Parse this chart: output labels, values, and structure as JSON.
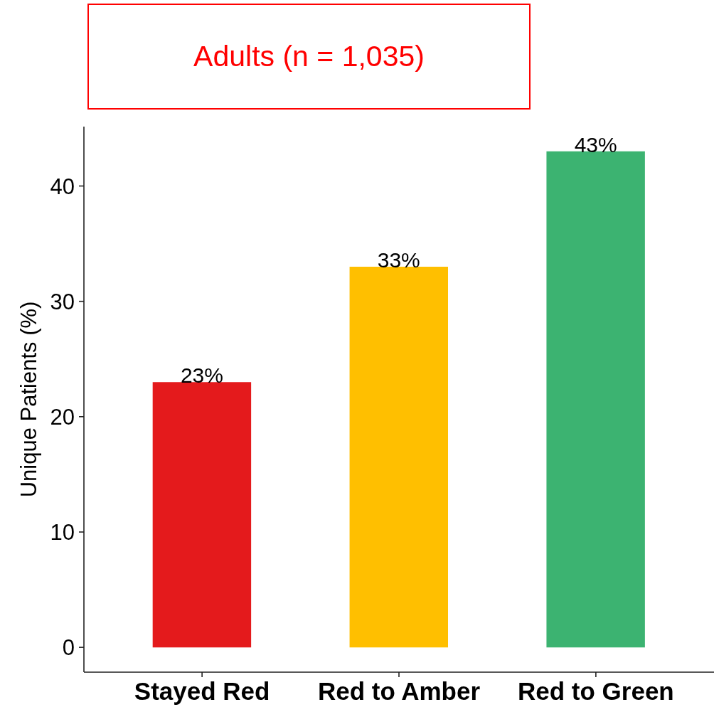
{
  "chart_data": {
    "type": "bar",
    "title": "Adults (n = 1,035)",
    "ylabel": "Unique Patients (%)",
    "categories": [
      "Stayed Red",
      "Red to Amber",
      "Red to Green"
    ],
    "values": [
      23,
      33,
      43
    ],
    "colors": [
      "#e41a1c",
      "#ffbf00",
      "#3cb371"
    ],
    "value_labels": [
      "23%",
      "33%",
      "43%"
    ],
    "ylim": [
      -2.15,
      45.15
    ],
    "yticks": [
      0,
      10,
      20,
      30,
      40
    ],
    "grid": false
  }
}
